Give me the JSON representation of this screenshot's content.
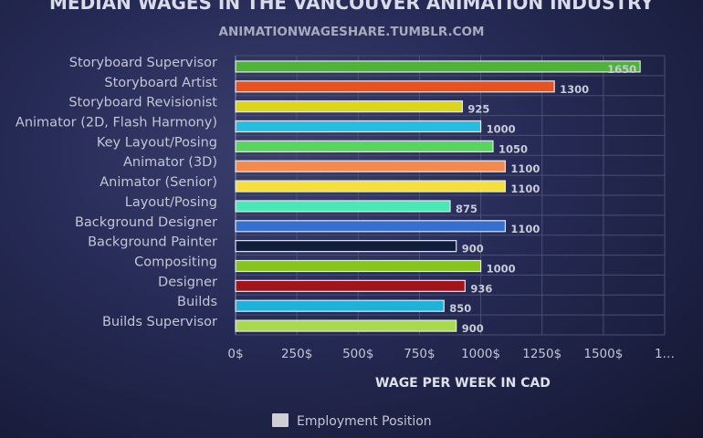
{
  "chart_data": {
    "type": "bar",
    "orientation": "horizontal",
    "title": "MEDIAN WAGES IN THE VANCOUVER ANIMATION INDUSTRY",
    "subtitle": "ANIMATIONWAGESHARE.TUMBLR.COM",
    "xlabel": "WAGE PER WEEK IN CAD",
    "ylabel": "",
    "xlim": [
      0,
      1750
    ],
    "x_ticks": [
      "0$",
      "250$",
      "500$",
      "750$",
      "1000$",
      "1250$",
      "1500$",
      "1…"
    ],
    "categories": [
      "Storyboard Supervisor",
      "Storyboard Artist",
      "Storyboard Revisionist",
      "Animator (2D, Flash Harmony)",
      "Key Layout/Posing",
      "Animator (3D)",
      "Animator (Senior)",
      "Layout/Posing",
      "Background Designer",
      "Background Painter",
      "Compositing",
      "Designer",
      "Builds",
      "Builds Supervisor"
    ],
    "values": [
      1650,
      1300,
      925,
      1000,
      1050,
      1100,
      1100,
      875,
      1100,
      900,
      1000,
      936,
      850,
      900
    ],
    "bar_colors": [
      "#4fb33a",
      "#e8521f",
      "#dcd61a",
      "#27bde0",
      "#59d45e",
      "#f58a4e",
      "#f4df3c",
      "#49e8b5",
      "#3570d0",
      "#10203a",
      "#86c51e",
      "#a0141a",
      "#1fb2d8",
      "#a9d94c"
    ],
    "legend": [
      {
        "name": "Employment Position",
        "color": "#cfcfd4"
      }
    ],
    "legend_position": "bottom",
    "grid": true
  }
}
